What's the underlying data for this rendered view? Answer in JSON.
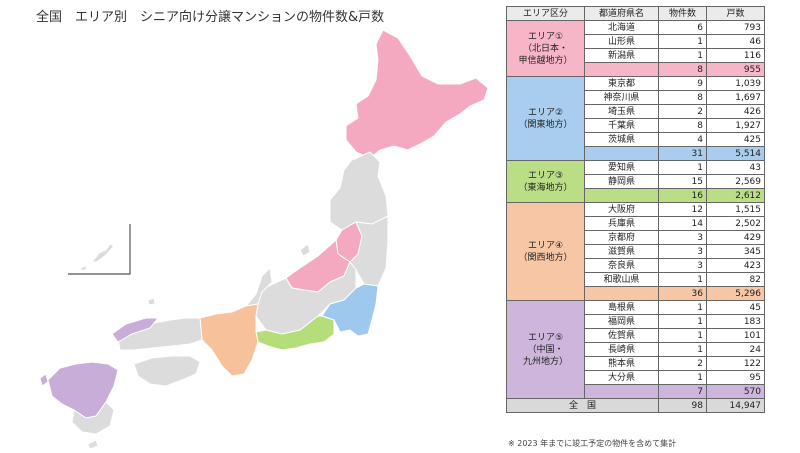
{
  "title": "全国　エリア別　シニア向け分譲マンションの物件数&戸数",
  "table": {
    "headers": [
      "エリア区分",
      "都道府県名",
      "物件数",
      "戸数"
    ],
    "areas": [
      {
        "label": "エリア①\n（北日本・\n甲信越地方）",
        "color": "#f7b5c8",
        "rows": [
          {
            "pref": "北海道",
            "count": "6",
            "units": "793"
          },
          {
            "pref": "山形県",
            "count": "1",
            "units": "46"
          },
          {
            "pref": "新潟県",
            "count": "1",
            "units": "116"
          }
        ],
        "subtotal": {
          "count": "8",
          "units": "955"
        }
      },
      {
        "label": "エリア②\n（関東地方）",
        "color": "#a9cdee",
        "rows": [
          {
            "pref": "東京都",
            "count": "9",
            "units": "1,039"
          },
          {
            "pref": "神奈川県",
            "count": "8",
            "units": "1,697"
          },
          {
            "pref": "埼玉県",
            "count": "2",
            "units": "426"
          },
          {
            "pref": "千葉県",
            "count": "8",
            "units": "1,927"
          },
          {
            "pref": "茨城県",
            "count": "4",
            "units": "425"
          }
        ],
        "subtotal": {
          "count": "31",
          "units": "5,514"
        }
      },
      {
        "label": "エリア③\n（東海地方）",
        "color": "#b9de86",
        "rows": [
          {
            "pref": "愛知県",
            "count": "1",
            "units": "43"
          },
          {
            "pref": "静岡県",
            "count": "15",
            "units": "2,569"
          }
        ],
        "subtotal": {
          "count": "16",
          "units": "2,612"
        }
      },
      {
        "label": "エリア④\n（関西地方）",
        "color": "#f7c6a5",
        "rows": [
          {
            "pref": "大阪府",
            "count": "12",
            "units": "1,515"
          },
          {
            "pref": "兵庫県",
            "count": "14",
            "units": "2,502"
          },
          {
            "pref": "京都府",
            "count": "3",
            "units": "429"
          },
          {
            "pref": "滋賀県",
            "count": "3",
            "units": "345"
          },
          {
            "pref": "奈良県",
            "count": "3",
            "units": "423"
          },
          {
            "pref": "和歌山県",
            "count": "1",
            "units": "82"
          }
        ],
        "subtotal": {
          "count": "36",
          "units": "5,296"
        }
      },
      {
        "label": "エリア⑤\n（中国・\n九州地方）",
        "color": "#cdb5db",
        "rows": [
          {
            "pref": "島根県",
            "count": "1",
            "units": "45"
          },
          {
            "pref": "福岡県",
            "count": "1",
            "units": "183"
          },
          {
            "pref": "佐賀県",
            "count": "1",
            "units": "101"
          },
          {
            "pref": "長崎県",
            "count": "1",
            "units": "24"
          },
          {
            "pref": "熊本県",
            "count": "2",
            "units": "122"
          },
          {
            "pref": "大分県",
            "count": "1",
            "units": "95"
          }
        ],
        "subtotal": {
          "count": "7",
          "units": "570"
        }
      }
    ],
    "total": {
      "label": "全　国",
      "count": "98",
      "units": "14,947",
      "color": "#d9d9d9"
    }
  },
  "footnote": "※ 2023 年までに竣工予定の物件を含めて集計",
  "map_colors": {
    "other": "#dcdcdc",
    "area1": "#f4a9c1",
    "area2": "#9ec8ee",
    "area3": "#b5de7b",
    "area4": "#f7c29b",
    "area5": "#c8add9",
    "border": "#ffffff"
  }
}
